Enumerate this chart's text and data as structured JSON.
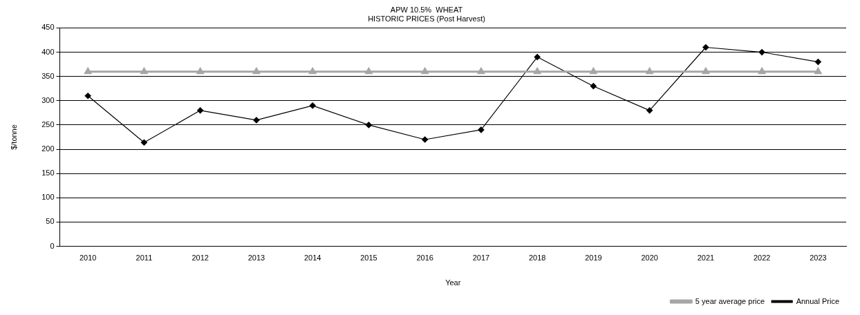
{
  "chart_data": {
    "type": "line",
    "title": [
      "APW 10.5%  WHEAT",
      "HISTORIC PRICES (Post Harvest)"
    ],
    "xlabel": "Year",
    "ylabel": "$/tonne",
    "categories": [
      "2010",
      "2011",
      "2012",
      "2013",
      "2014",
      "2015",
      "2016",
      "2017",
      "2018",
      "2019",
      "2020",
      "2021",
      "2022",
      "2023"
    ],
    "series": [
      {
        "name": "Annual Price",
        "color": "#000000",
        "marker": "diamond",
        "values": [
          310,
          214,
          280,
          260,
          290,
          250,
          220,
          240,
          390,
          330,
          280,
          410,
          400,
          380
        ]
      },
      {
        "name": "5 year average price",
        "color": "#a6a6a6",
        "marker": "triangle",
        "values": [
          360,
          360,
          360,
          360,
          360,
          360,
          360,
          360,
          360,
          360,
          360,
          360,
          360,
          360
        ]
      }
    ],
    "ylim": [
      0,
      450
    ],
    "yticks": [
      0,
      50,
      100,
      150,
      200,
      250,
      300,
      350,
      400,
      450
    ],
    "grid": "y",
    "legend": "bottom right"
  }
}
